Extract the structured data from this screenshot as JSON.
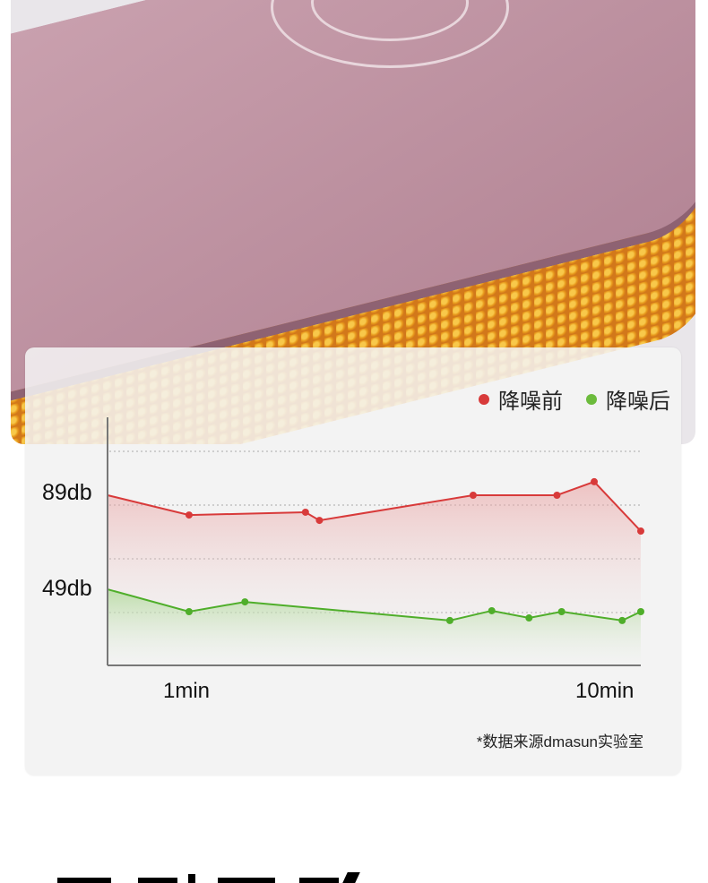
{
  "legend": [
    {
      "label": "降噪前",
      "color": "#d83a3a"
    },
    {
      "label": "降噪后",
      "color": "#6cbb3c"
    }
  ],
  "source_note": "*数据来源dmasun实验室",
  "chart_data": {
    "type": "area",
    "title": "",
    "xlabel": "",
    "ylabel": "",
    "x_tick_labels": [
      {
        "x": 1,
        "label": "1min"
      },
      {
        "x": 10,
        "label": "10min"
      }
    ],
    "y_tick_labels": [
      {
        "y": 89,
        "label": "89db"
      },
      {
        "y": 49,
        "label": "49db"
      }
    ],
    "xlim": [
      -0.75,
      10.7
    ],
    "ylim": [
      16,
      110
    ],
    "grid": "horizontal dotted",
    "legend_position": "top-right",
    "series": [
      {
        "name": "降噪前",
        "color": "#d83a3a",
        "x": [
          -0.75,
          1.0,
          3.5,
          3.8,
          7.1,
          8.9,
          9.7,
          10.7
        ],
        "y": [
          89,
          80.5,
          81.7,
          78.2,
          89,
          89,
          94.8,
          73.6
        ]
      },
      {
        "name": "降噪后",
        "color": "#4fae2a",
        "x": [
          -0.75,
          1.0,
          2.2,
          6.6,
          7.5,
          8.3,
          9.0,
          10.3,
          10.7
        ],
        "y": [
          48.6,
          39,
          43.2,
          35.2,
          39.4,
          36.3,
          39,
          35.2,
          39
        ]
      }
    ]
  }
}
